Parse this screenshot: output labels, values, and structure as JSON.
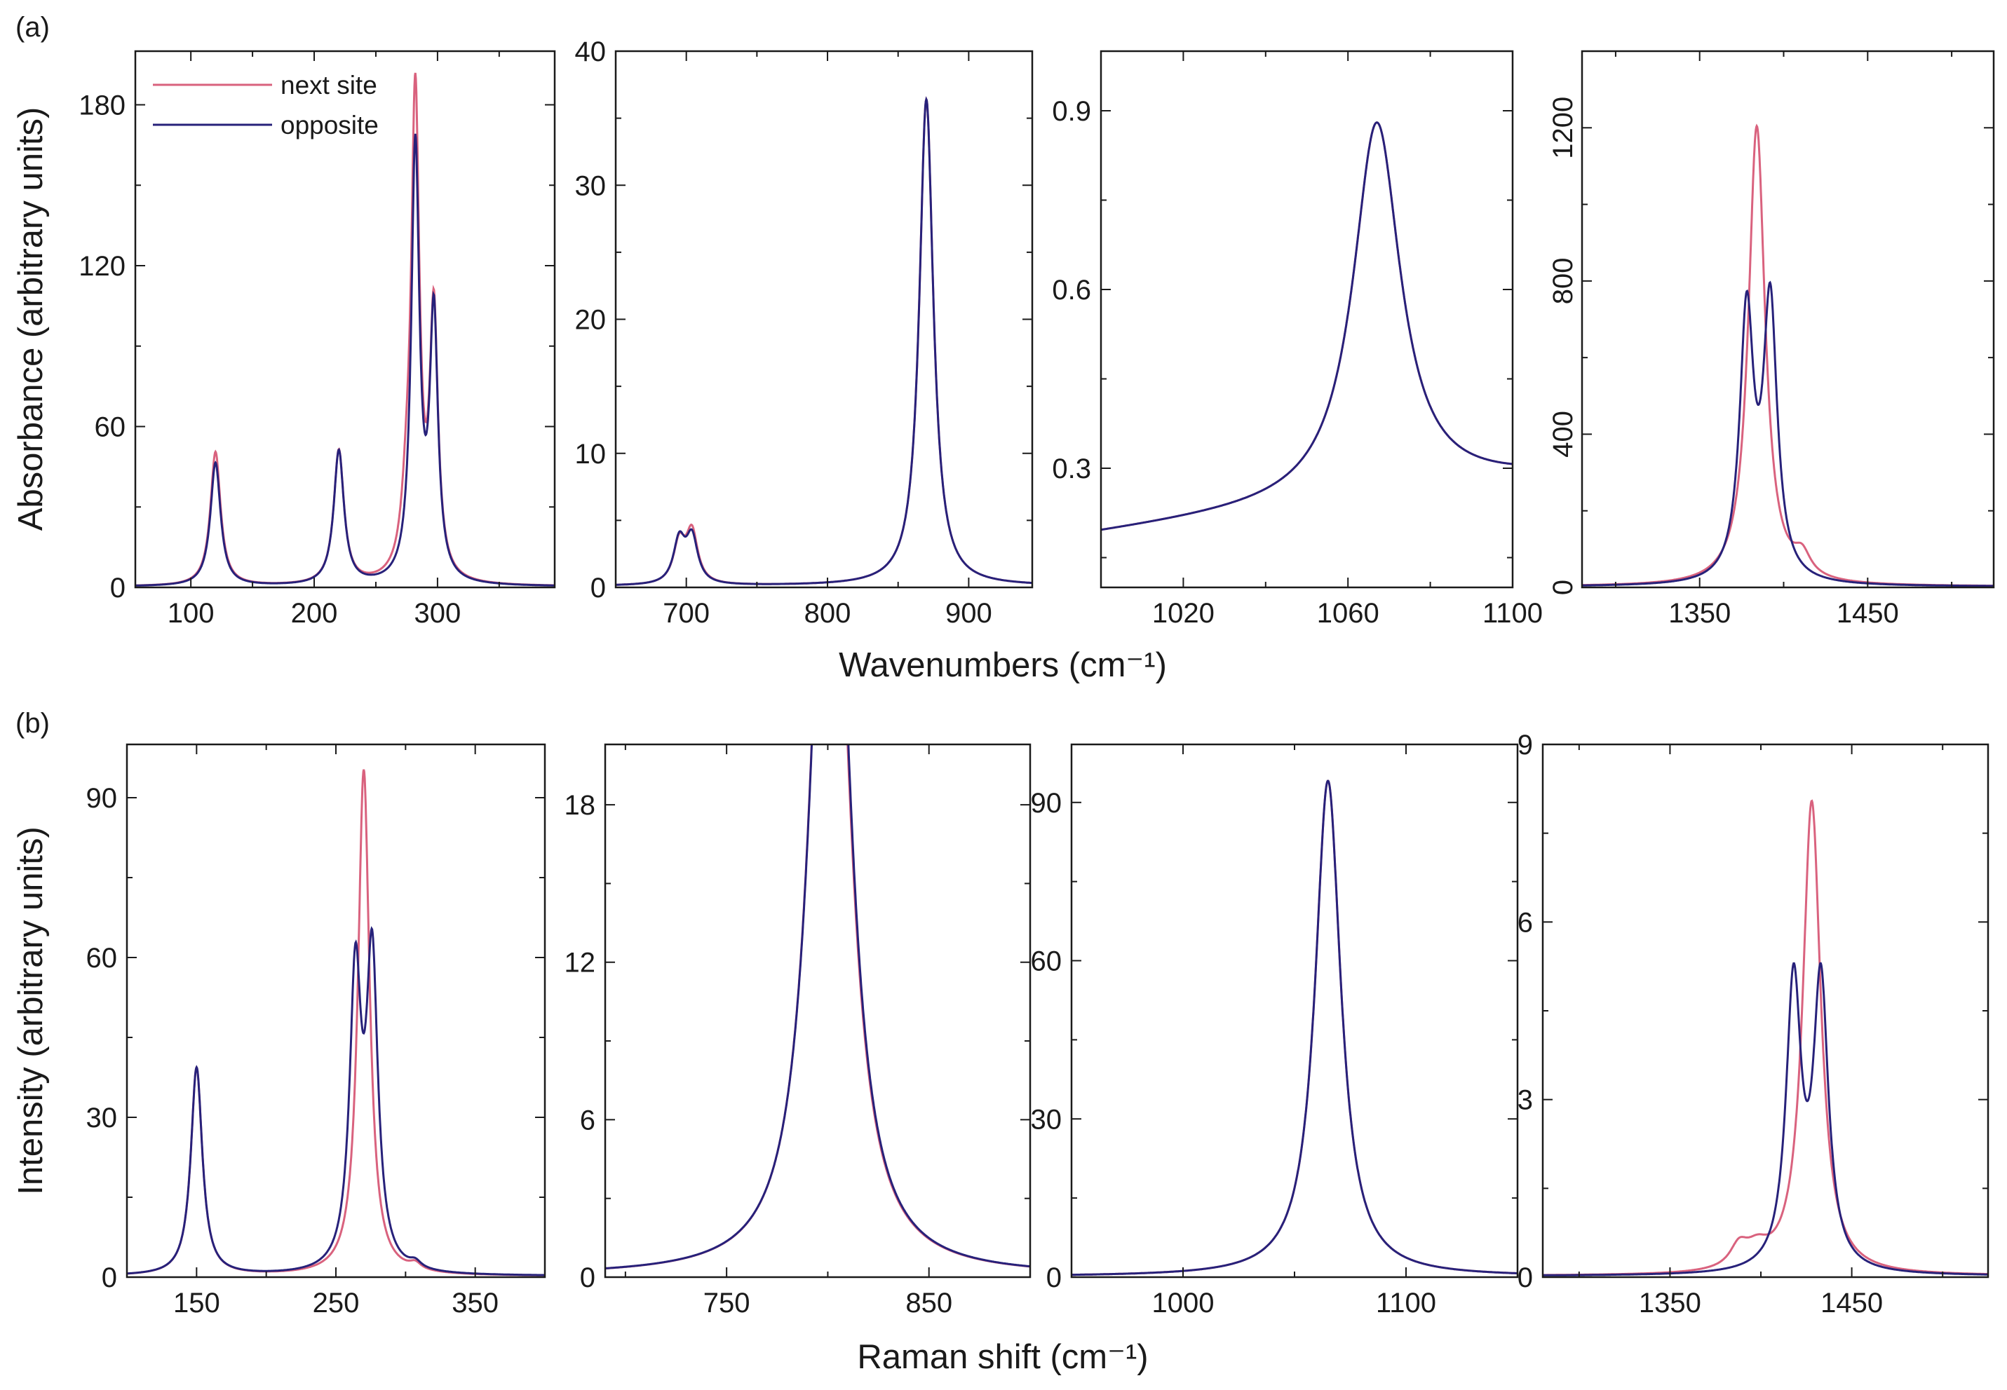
{
  "figure": {
    "panel_labels": [
      "(a)",
      "(b)"
    ],
    "row_a": {
      "xlabel": "Wavenumbers (cm⁻¹)",
      "ylabel": "Absorbance (arbitrary units)"
    },
    "row_b": {
      "xlabel": "Raman shift (cm⁻¹)",
      "ylabel": "Intensity (arbitrary units)"
    },
    "legend": [
      {
        "name": "next site",
        "color": "#d9627e"
      },
      {
        "name": "opposite",
        "color": "#27217a"
      }
    ],
    "colors": {
      "next_site": "#d9627e",
      "opposite": "#27217a",
      "axis": "#1a1a1a"
    }
  },
  "chart_data": [
    {
      "id": "a1",
      "type": "line",
      "row": "a",
      "xlim": [
        55,
        395
      ],
      "ylim": [
        0,
        200
      ],
      "xticks": [
        100,
        200,
        300
      ],
      "yticks": [
        0,
        60,
        120,
        180
      ],
      "xtick_labels": [
        "100",
        "200",
        "300"
      ],
      "ytick_labels": [
        "0",
        "60",
        "120",
        "180"
      ],
      "ytick_rotate": false,
      "series": [
        {
          "name": "next site",
          "baseline": 0.3,
          "peaks": [
            [
              120,
              50,
              5
            ],
            [
              220,
              50,
              5
            ],
            [
              282,
              178,
              4
            ],
            [
              297,
              98,
              4
            ],
            [
              275,
              20,
              5
            ]
          ]
        },
        {
          "name": "opposite",
          "baseline": 0.3,
          "peaks": [
            [
              120,
              46,
              5
            ],
            [
              220,
              50,
              5
            ],
            [
              282,
              162,
              4
            ],
            [
              297,
              98,
              4
            ]
          ]
        }
      ]
    },
    {
      "id": "a2",
      "type": "line",
      "row": "a",
      "xlim": [
        650,
        945
      ],
      "ylim": [
        0,
        40
      ],
      "xticks": [
        700,
        800,
        900
      ],
      "yticks": [
        0,
        10,
        20,
        30,
        40
      ],
      "xtick_labels": [
        "700",
        "800",
        "900"
      ],
      "ytick_labels": [
        "0",
        "10",
        "20",
        "30",
        "40"
      ],
      "ytick_rotate": false,
      "series": [
        {
          "name": "next site",
          "baseline": 0.1,
          "peaks": [
            [
              695,
              3.0,
              5
            ],
            [
              704,
              3.8,
              5
            ],
            [
              870,
              36.3,
              6
            ]
          ]
        },
        {
          "name": "opposite",
          "baseline": 0.1,
          "peaks": [
            [
              695,
              3.2,
              5
            ],
            [
              704,
              3.4,
              5
            ],
            [
              870,
              36.3,
              6
            ]
          ]
        }
      ]
    },
    {
      "id": "a3",
      "type": "line",
      "row": "a",
      "xlim": [
        1000,
        1100
      ],
      "ylim": [
        0.1,
        1.0
      ],
      "xticks": [
        1020,
        1060,
        1100
      ],
      "yticks": [
        0.3,
        0.6,
        0.9
      ],
      "xtick_labels": [
        "1020",
        "1060",
        "1100"
      ],
      "ytick_labels": [
        "0.3",
        "0.6",
        "0.9"
      ],
      "ytick_rotate": false,
      "series": [
        {
          "name": "next site",
          "baseline": 0.19,
          "slope": 0.0009,
          "x0": 1000,
          "peaks": [
            [
              1067,
              0.63,
              7
            ]
          ]
        },
        {
          "name": "opposite",
          "baseline": 0.19,
          "slope": 0.0009,
          "x0": 1000,
          "peaks": [
            [
              1067,
              0.63,
              7
            ]
          ]
        }
      ]
    },
    {
      "id": "a4",
      "type": "line",
      "row": "a",
      "xlim": [
        1280,
        1525
      ],
      "ylim": [
        0,
        1400
      ],
      "xticks": [
        1350,
        1450
      ],
      "yticks": [
        0,
        400,
        800,
        1200
      ],
      "xtick_labels": [
        "1350",
        "1450"
      ],
      "ytick_labels": [
        "0",
        "400",
        "800",
        "1200"
      ],
      "ytick_rotate": true,
      "series": [
        {
          "name": "next site",
          "baseline": 2,
          "peaks": [
            [
              1384,
              1200,
              6
            ],
            [
              1411,
              55,
              6
            ]
          ]
        },
        {
          "name": "opposite",
          "baseline": 2,
          "peaks": [
            [
              1378,
              690,
              5
            ],
            [
              1392,
              715,
              5
            ]
          ]
        }
      ]
    },
    {
      "id": "b1",
      "type": "line",
      "row": "b",
      "xlim": [
        100,
        400
      ],
      "ylim": [
        0,
        100
      ],
      "xticks": [
        150,
        250,
        350
      ],
      "yticks": [
        0,
        30,
        60,
        90
      ],
      "xtick_labels": [
        "150",
        "250",
        "350"
      ],
      "ytick_labels": [
        "0",
        "30",
        "60",
        "90"
      ],
      "ytick_rotate": false,
      "series": [
        {
          "name": "next site",
          "baseline": 0.2,
          "peaks": [
            [
              150,
              39,
              5
            ],
            [
              270,
              95,
              5
            ],
            [
              307,
              1.2,
              5
            ]
          ]
        },
        {
          "name": "opposite",
          "baseline": 0.2,
          "peaks": [
            [
              150,
              39,
              5
            ],
            [
              264,
              54,
              5
            ],
            [
              276,
              57,
              5
            ],
            [
              307,
              1.2,
              5
            ]
          ]
        }
      ]
    },
    {
      "id": "b2",
      "type": "line",
      "row": "b",
      "xlim": [
        690,
        900
      ],
      "ylim": [
        0,
        20.3
      ],
      "xticks": [
        750,
        850
      ],
      "yticks": [
        0,
        6,
        12,
        18
      ],
      "xtick_labels": [
        "750",
        "850"
      ],
      "ytick_labels": [
        "0",
        "6",
        "12",
        "18"
      ],
      "ytick_rotate": false,
      "series": [
        {
          "name": "next site",
          "baseline": 0.05,
          "peaks": [
            [
              798,
              18,
              10
            ],
            [
              804,
              17,
              10
            ]
          ]
        },
        {
          "name": "opposite",
          "baseline": 0.05,
          "peaks": [
            [
              798,
              17,
              10
            ],
            [
              804,
              18.5,
              10
            ]
          ]
        }
      ]
    },
    {
      "id": "b3",
      "type": "line",
      "row": "b",
      "xlim": [
        950,
        1150
      ],
      "ylim": [
        0,
        101
      ],
      "xticks": [
        1000,
        1100
      ],
      "yticks": [
        0,
        30,
        60,
        90
      ],
      "xtick_labels": [
        "1000",
        "1100"
      ],
      "ytick_labels": [
        "0",
        "30",
        "60",
        "90"
      ],
      "ytick_rotate": false,
      "series": [
        {
          "name": "next site",
          "baseline": 0.1,
          "peaks": [
            [
              1065,
              94,
              7
            ]
          ]
        },
        {
          "name": "opposite",
          "baseline": 0.1,
          "peaks": [
            [
              1065,
              94,
              7
            ]
          ]
        }
      ]
    },
    {
      "id": "b4",
      "type": "line",
      "row": "b",
      "xlim": [
        1280,
        1525
      ],
      "ylim": [
        0,
        9
      ],
      "xticks": [
        1350,
        1450
      ],
      "yticks": [
        0,
        3,
        6,
        9
      ],
      "xtick_labels": [
        "1350",
        "1450"
      ],
      "ytick_labels": [
        "0",
        "3",
        "6",
        "9"
      ],
      "ytick_rotate": false,
      "series": [
        {
          "name": "next site",
          "baseline": 0.02,
          "peaks": [
            [
              1428,
              8.0,
              6
            ],
            [
              1388,
              0.35,
              6
            ],
            [
              1398,
              0.3,
              8
            ]
          ]
        },
        {
          "name": "opposite",
          "baseline": 0.02,
          "peaks": [
            [
              1418,
              4.8,
              5
            ],
            [
              1433,
              4.8,
              5
            ]
          ]
        }
      ]
    }
  ]
}
